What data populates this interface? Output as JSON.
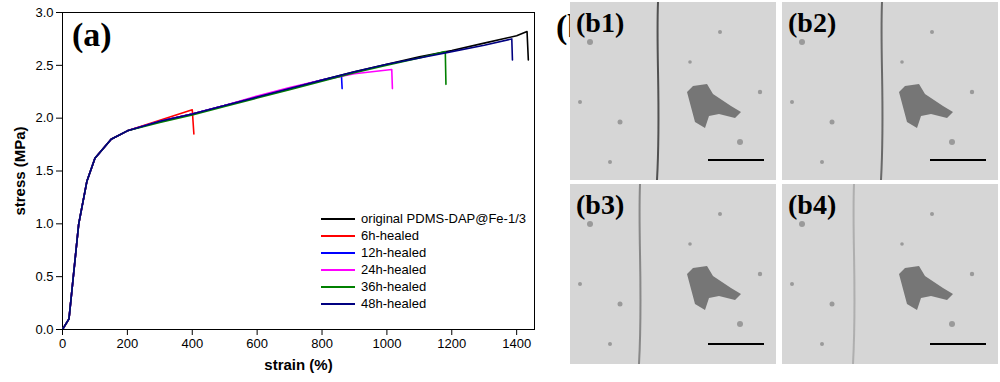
{
  "chart_data": {
    "type": "line",
    "title": "(a)",
    "x_label": "strain (%)",
    "y_label": "stress (MPa)",
    "xlim": [
      0,
      1455
    ],
    "ylim": [
      0,
      3
    ],
    "xticks": [
      0,
      200,
      400,
      600,
      800,
      1000,
      1200,
      1400
    ],
    "yticks": [
      {
        "value": 0,
        "label": "0.0"
      },
      {
        "value": 0.5,
        "label": "0.5"
      },
      {
        "value": 1,
        "label": "1.0"
      },
      {
        "value": 1.5,
        "label": "1.5"
      },
      {
        "value": 2,
        "label": "2.0"
      },
      {
        "value": 2.5,
        "label": "2.5"
      },
      {
        "value": 3,
        "label": "3.0"
      }
    ],
    "grid": false,
    "legend": "lower right",
    "line_style": "solid",
    "series": [
      {
        "name": "original PDMS-DAP@Fe-1/3",
        "color": "#000000",
        "x": [
          0,
          20,
          30,
          50,
          75,
          100,
          150,
          200,
          300,
          400,
          500,
          600,
          700,
          800,
          900,
          1000,
          1100,
          1200,
          1300,
          1400,
          1432,
          1436
        ],
        "values": [
          0,
          0.1,
          0.4,
          1.0,
          1.4,
          1.62,
          1.8,
          1.88,
          1.97,
          2.04,
          2.12,
          2.2,
          2.28,
          2.36,
          2.44,
          2.51,
          2.58,
          2.64,
          2.71,
          2.78,
          2.82,
          2.55
        ]
      },
      {
        "name": "6h-healed",
        "color": "#ff0000",
        "x": [
          0,
          20,
          30,
          50,
          75,
          100,
          150,
          200,
          300,
          400,
          405
        ],
        "values": [
          0,
          0.1,
          0.4,
          1.0,
          1.4,
          1.62,
          1.8,
          1.88,
          1.98,
          2.08,
          1.85
        ]
      },
      {
        "name": "12h-healed",
        "color": "#0000ff",
        "x": [
          0,
          20,
          30,
          50,
          75,
          100,
          150,
          200,
          300,
          400,
          500,
          600,
          700,
          800,
          860,
          862
        ],
        "values": [
          0,
          0.1,
          0.4,
          1.0,
          1.4,
          1.62,
          1.8,
          1.88,
          1.97,
          2.04,
          2.12,
          2.2,
          2.28,
          2.36,
          2.4,
          2.28
        ]
      },
      {
        "name": "24h-healed",
        "color": "#ff00ff",
        "x": [
          0,
          20,
          30,
          50,
          75,
          100,
          150,
          200,
          300,
          400,
          500,
          600,
          700,
          800,
          900,
          1015,
          1017
        ],
        "values": [
          0,
          0.1,
          0.4,
          1.0,
          1.4,
          1.62,
          1.8,
          1.88,
          1.97,
          2.04,
          2.12,
          2.21,
          2.29,
          2.36,
          2.42,
          2.46,
          2.28
        ]
      },
      {
        "name": "36h-healed",
        "color": "#008000",
        "x": [
          0,
          20,
          30,
          50,
          75,
          100,
          150,
          200,
          300,
          400,
          500,
          600,
          700,
          800,
          900,
          1000,
          1100,
          1180,
          1182
        ],
        "values": [
          0,
          0.1,
          0.4,
          1.0,
          1.4,
          1.62,
          1.8,
          1.88,
          1.96,
          2.03,
          2.11,
          2.19,
          2.27,
          2.35,
          2.43,
          2.5,
          2.57,
          2.63,
          2.32
        ]
      },
      {
        "name": "48h-healed",
        "color": "#000080",
        "x": [
          0,
          20,
          30,
          50,
          75,
          100,
          150,
          200,
          300,
          400,
          500,
          600,
          700,
          800,
          900,
          1000,
          1100,
          1200,
          1300,
          1385,
          1387
        ],
        "values": [
          0,
          0.1,
          0.4,
          1.0,
          1.4,
          1.62,
          1.8,
          1.88,
          1.97,
          2.04,
          2.12,
          2.2,
          2.28,
          2.36,
          2.44,
          2.51,
          2.57,
          2.63,
          2.69,
          2.75,
          2.55
        ]
      }
    ]
  },
  "micrographs": {
    "label": "(b)",
    "panels": [
      "(b1)",
      "(b2)",
      "(b3)",
      "(b4)"
    ]
  }
}
